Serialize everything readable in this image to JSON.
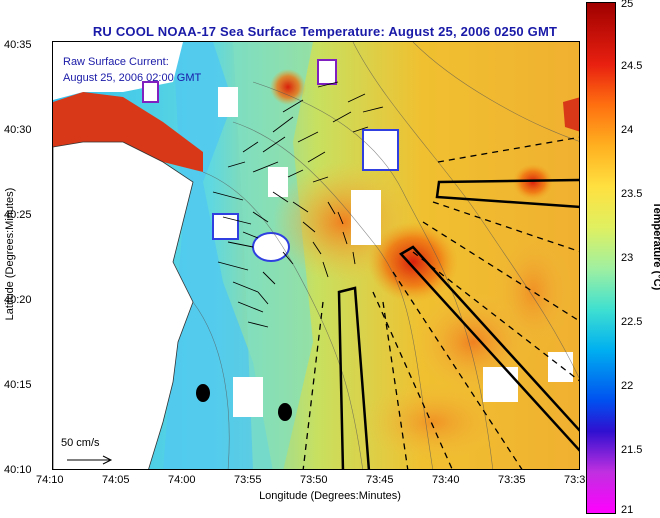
{
  "title": "RU COOL  NOAA-17  Sea Surface Temperature:  August 25, 2006 0250 GMT",
  "legend_text": {
    "line1": "Raw Surface Current:",
    "line2": "August 25, 2006 02:00 GMT"
  },
  "scale_label": "50 cm/s",
  "axes": {
    "xlabel": "Longitude (Degrees:Minutes)",
    "ylabel": "Latitude (Degrees:Minutes)",
    "x_ticks": [
      "74:10",
      "74:05",
      "74:00",
      "73:55",
      "73:50",
      "73:45",
      "73:40",
      "73:35",
      "73:3"
    ],
    "y_ticks": [
      "40:35",
      "40:30",
      "40:25",
      "40:20",
      "40:15",
      "40:10"
    ]
  },
  "colorbar": {
    "label": "Temperature (°C)",
    "ticks": [
      "25",
      "24.5",
      "24",
      "23.5",
      "23",
      "22.5",
      "22",
      "21.5",
      "21"
    ]
  },
  "colors": {
    "title": "#1a1aa8",
    "land": "#ffffff",
    "warm": "#e04010",
    "cool": "#40c0f0"
  }
}
